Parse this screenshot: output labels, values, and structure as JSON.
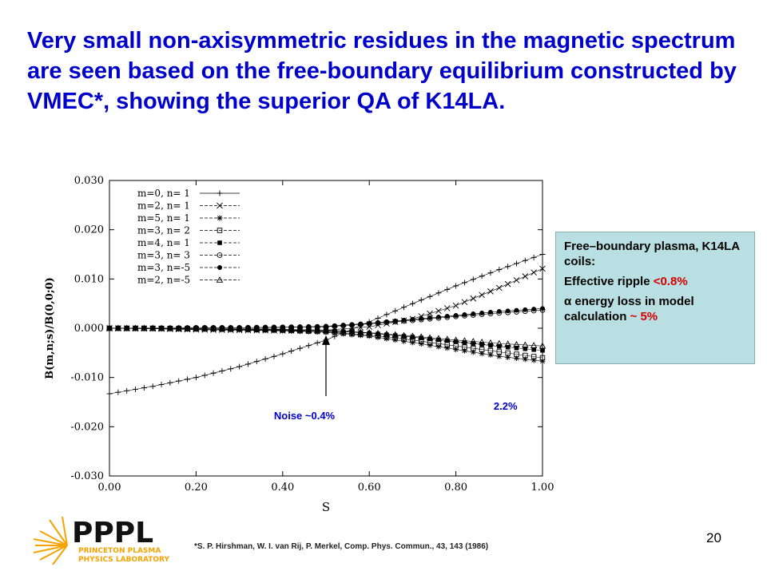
{
  "slide": {
    "title": "Very small non-axisymmetric residues in the magnetic spectrum are seen based on the free-boundary equilibrium constructed by VMEC*, showing the superior QA of K14LA.",
    "info_box": {
      "line1": "Free–boundary plasma, K14LA coils:",
      "ripple_label": "Effective ripple ",
      "ripple_value": "<0.8%",
      "alpha_symbol": "α",
      "energy_label": " energy loss in model calculation ",
      "energy_value": "~ 5%"
    },
    "citation": "*S. P. Hirshman, W. I. van Rij, P. Merkel, Comp. Phys. Commun., 43, 143 (1986)",
    "page_number": "20",
    "logo": {
      "name": "PPPL",
      "line1": "PRINCETON PLASMA",
      "line2": "PHYSICS LABORATORY",
      "colors": {
        "text": "#111111",
        "accent": "#f5a300"
      }
    }
  },
  "chart_data": {
    "type": "line",
    "xlabel": "S",
    "ylabel": "B(m,n;s)/B(0,0;0)",
    "xlim": [
      0.0,
      1.0
    ],
    "ylim": [
      -0.03,
      0.03
    ],
    "xticks": [
      "0.00",
      "0.20",
      "0.40",
      "0.60",
      "0.80",
      "1.00"
    ],
    "xtick_values": [
      0.0,
      0.2,
      0.4,
      0.6,
      0.8,
      1.0
    ],
    "yticks": [
      "0.030",
      "0.020",
      "0.010",
      "0.000",
      "-0.010",
      "-0.020",
      "-0.030"
    ],
    "ytick_values": [
      0.03,
      0.02,
      0.01,
      0.0,
      -0.01,
      -0.02,
      -0.03
    ],
    "grid": false,
    "legend_position": "top-left",
    "x": [
      0.0,
      0.1,
      0.2,
      0.3,
      0.4,
      0.5,
      0.6,
      0.7,
      0.8,
      0.9,
      1.0
    ],
    "series": [
      {
        "name": "m=0, n= 1",
        "marker": "plus",
        "values": [
          -0.0133,
          -0.0118,
          -0.01,
          -0.0078,
          -0.0052,
          -0.0024,
          0.0013,
          0.005,
          0.0086,
          0.0119,
          0.015
        ]
      },
      {
        "name": "m=2, n= 1",
        "marker": "x",
        "values": [
          0.0,
          -0.0001,
          -0.0003,
          -0.0004,
          -0.0005,
          -0.0004,
          0.0003,
          0.0019,
          0.0046,
          0.0082,
          0.0121
        ]
      },
      {
        "name": "m=5, n= 1",
        "marker": "asterisk",
        "values": [
          0.0,
          -0.0001,
          -0.0002,
          -0.0003,
          -0.0005,
          -0.0008,
          -0.0016,
          -0.0029,
          -0.0043,
          -0.0057,
          -0.0067
        ]
      },
      {
        "name": "m=3, n= 2",
        "marker": "square-open",
        "values": [
          0.0,
          0.0,
          -0.0001,
          -0.0002,
          -0.0004,
          -0.0007,
          -0.0014,
          -0.0024,
          -0.0036,
          -0.0048,
          -0.006
        ]
      },
      {
        "name": "m=4, n= 1",
        "marker": "square-filled",
        "values": [
          0.0,
          0.0,
          -0.0001,
          -0.0002,
          -0.0003,
          -0.0005,
          -0.001,
          -0.0018,
          -0.0027,
          -0.0037,
          -0.0045
        ]
      },
      {
        "name": "m=3, n= 3",
        "marker": "circle-open",
        "values": [
          0.0,
          0.0,
          0.0001,
          0.0001,
          0.0002,
          0.0003,
          0.0009,
          0.0016,
          0.0024,
          0.0031,
          0.0037
        ]
      },
      {
        "name": "m=3, n=-5",
        "marker": "circle-filled",
        "values": [
          0.0,
          0.0,
          0.0001,
          0.0001,
          0.0002,
          0.0004,
          0.001,
          0.0018,
          0.0026,
          0.0034,
          0.004
        ]
      },
      {
        "name": "m=2, n=-5",
        "marker": "triangle-open",
        "values": [
          0.0,
          0.0,
          -0.0001,
          -0.0001,
          -0.0002,
          -0.0004,
          -0.0009,
          -0.0016,
          -0.0024,
          -0.0031,
          -0.0036
        ]
      }
    ],
    "annotations": [
      {
        "text": "Noise ~0.4%",
        "x": 0.5,
        "y": -0.0008,
        "color": "#0000cc"
      },
      {
        "text": "2.2%",
        "x": 0.97,
        "y": -0.0165,
        "color": "#0000cc"
      }
    ]
  }
}
